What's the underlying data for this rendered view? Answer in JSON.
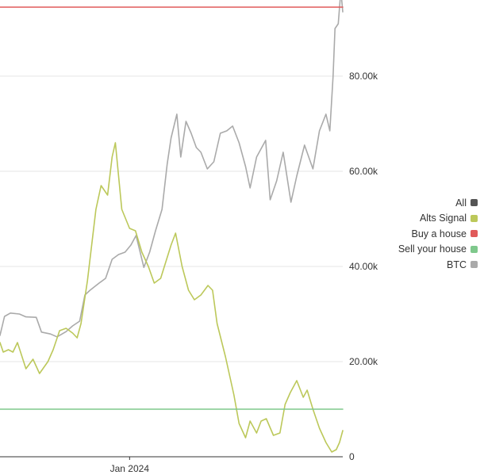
{
  "chart_data": {
    "type": "line",
    "x_axis": {
      "ticks": [
        "Jan 2024"
      ]
    },
    "y_axis": {
      "ticks": [
        "0",
        "20.00k",
        "40.00k",
        "60.00k",
        "80.00k"
      ],
      "range": [
        0,
        96000
      ],
      "position": "right"
    },
    "x_range": [
      "2023-06-15",
      "2024-11-25"
    ],
    "grid": "horizontal",
    "legend": {
      "placement": "right",
      "items": [
        {
          "label": "All",
          "color": "#555555"
        },
        {
          "label": "Alts Signal",
          "color": "#bcc85a"
        },
        {
          "label": "Buy a house",
          "color": "#e05a5a"
        },
        {
          "label": "Sell your house",
          "color": "#7fc88c"
        },
        {
          "label": "BTC",
          "color": "#aaaaaa"
        }
      ]
    },
    "series": [
      {
        "name": "BTC",
        "color": "#aaaaaa",
        "points": [
          [
            "2023-06-15",
            25500
          ],
          [
            "2023-06-22",
            29500
          ],
          [
            "2023-07-01",
            30200
          ],
          [
            "2023-07-15",
            30000
          ],
          [
            "2023-07-25",
            29400
          ],
          [
            "2023-08-10",
            29300
          ],
          [
            "2023-08-18",
            26200
          ],
          [
            "2023-09-01",
            25800
          ],
          [
            "2023-09-11",
            25200
          ],
          [
            "2023-09-25",
            26300
          ],
          [
            "2023-10-05",
            27500
          ],
          [
            "2023-10-16",
            28500
          ],
          [
            "2023-10-24",
            34000
          ],
          [
            "2023-11-01",
            35000
          ],
          [
            "2023-11-15",
            36500
          ],
          [
            "2023-11-25",
            37500
          ],
          [
            "2023-12-05",
            41500
          ],
          [
            "2023-12-15",
            42500
          ],
          [
            "2023-12-25",
            43000
          ],
          [
            "2024-01-03",
            44500
          ],
          [
            "2024-01-11",
            46500
          ],
          [
            "2024-01-23",
            39800
          ],
          [
            "2024-02-01",
            43000
          ],
          [
            "2024-02-10",
            47500
          ],
          [
            "2024-02-20",
            52000
          ],
          [
            "2024-02-28",
            61500
          ],
          [
            "2024-03-05",
            67000
          ],
          [
            "2024-03-14",
            72000
          ],
          [
            "2024-03-20",
            63000
          ],
          [
            "2024-03-28",
            70500
          ],
          [
            "2024-04-05",
            68000
          ],
          [
            "2024-04-13",
            65000
          ],
          [
            "2024-04-20",
            64000
          ],
          [
            "2024-04-30",
            60500
          ],
          [
            "2024-05-10",
            62000
          ],
          [
            "2024-05-20",
            68000
          ],
          [
            "2024-05-30",
            68500
          ],
          [
            "2024-06-08",
            69500
          ],
          [
            "2024-06-18",
            66000
          ],
          [
            "2024-06-28",
            61000
          ],
          [
            "2024-07-05",
            56500
          ],
          [
            "2024-07-15",
            63000
          ],
          [
            "2024-07-29",
            66500
          ],
          [
            "2024-08-05",
            54000
          ],
          [
            "2024-08-15",
            58000
          ],
          [
            "2024-08-25",
            64000
          ],
          [
            "2024-09-06",
            53500
          ],
          [
            "2024-09-15",
            59000
          ],
          [
            "2024-09-27",
            65500
          ],
          [
            "2024-10-10",
            60500
          ],
          [
            "2024-10-20",
            68500
          ],
          [
            "2024-10-30",
            72000
          ],
          [
            "2024-11-05",
            68500
          ],
          [
            "2024-11-10",
            80000
          ],
          [
            "2024-11-13",
            90000
          ],
          [
            "2024-11-18",
            91000
          ],
          [
            "2024-11-22",
            98000
          ],
          [
            "2024-11-25",
            93500
          ]
        ]
      },
      {
        "name": "Alts Signal",
        "color": "#bcc85a",
        "points": [
          [
            "2023-06-15",
            24000
          ],
          [
            "2023-06-20",
            22000
          ],
          [
            "2023-06-28",
            22500
          ],
          [
            "2023-07-05",
            22000
          ],
          [
            "2023-07-12",
            24000
          ],
          [
            "2023-07-25",
            18500
          ],
          [
            "2023-08-05",
            20500
          ],
          [
            "2023-08-15",
            17500
          ],
          [
            "2023-08-28",
            20000
          ],
          [
            "2023-09-05",
            22500
          ],
          [
            "2023-09-15",
            26500
          ],
          [
            "2023-09-25",
            27000
          ],
          [
            "2023-10-05",
            26000
          ],
          [
            "2023-10-12",
            25000
          ],
          [
            "2023-10-18",
            28000
          ],
          [
            "2023-10-28",
            37000
          ],
          [
            "2023-11-10",
            52000
          ],
          [
            "2023-11-18",
            57000
          ],
          [
            "2023-11-28",
            55000
          ],
          [
            "2023-12-05",
            63000
          ],
          [
            "2023-12-10",
            66000
          ],
          [
            "2023-12-20",
            52000
          ],
          [
            "2024-01-01",
            48000
          ],
          [
            "2024-01-10",
            47500
          ],
          [
            "2024-01-20",
            43000
          ],
          [
            "2024-01-30",
            40000
          ],
          [
            "2024-02-08",
            36500
          ],
          [
            "2024-02-18",
            37500
          ],
          [
            "2024-03-05",
            44500
          ],
          [
            "2024-03-12",
            47000
          ],
          [
            "2024-03-22",
            40000
          ],
          [
            "2024-04-01",
            35000
          ],
          [
            "2024-04-10",
            33000
          ],
          [
            "2024-04-20",
            34000
          ],
          [
            "2024-05-01",
            36000
          ],
          [
            "2024-05-08",
            35000
          ],
          [
            "2024-05-15",
            28000
          ],
          [
            "2024-05-28",
            21000
          ],
          [
            "2024-06-10",
            13000
          ],
          [
            "2024-06-18",
            7000
          ],
          [
            "2024-06-28",
            4000
          ],
          [
            "2024-07-05",
            7500
          ],
          [
            "2024-07-15",
            5000
          ],
          [
            "2024-07-22",
            7500
          ],
          [
            "2024-07-30",
            8000
          ],
          [
            "2024-08-10",
            4500
          ],
          [
            "2024-08-20",
            5000
          ],
          [
            "2024-08-28",
            11000
          ],
          [
            "2024-09-05",
            13500
          ],
          [
            "2024-09-15",
            16000
          ],
          [
            "2024-09-25",
            12500
          ],
          [
            "2024-10-01",
            14000
          ],
          [
            "2024-10-10",
            10000
          ],
          [
            "2024-10-20",
            6000
          ],
          [
            "2024-10-30",
            3000
          ],
          [
            "2024-11-08",
            1000
          ],
          [
            "2024-11-15",
            1500
          ],
          [
            "2024-11-20",
            3000
          ],
          [
            "2024-11-25",
            5500
          ]
        ]
      },
      {
        "name": "Buy a house",
        "color": "#e05a5a",
        "points": [
          [
            "2023-06-15",
            94500
          ],
          [
            "2024-11-25",
            94500
          ]
        ]
      },
      {
        "name": "Sell your house",
        "color": "#7fc88c",
        "points": [
          [
            "2023-06-15",
            10000
          ],
          [
            "2024-11-25",
            10000
          ]
        ]
      }
    ]
  }
}
